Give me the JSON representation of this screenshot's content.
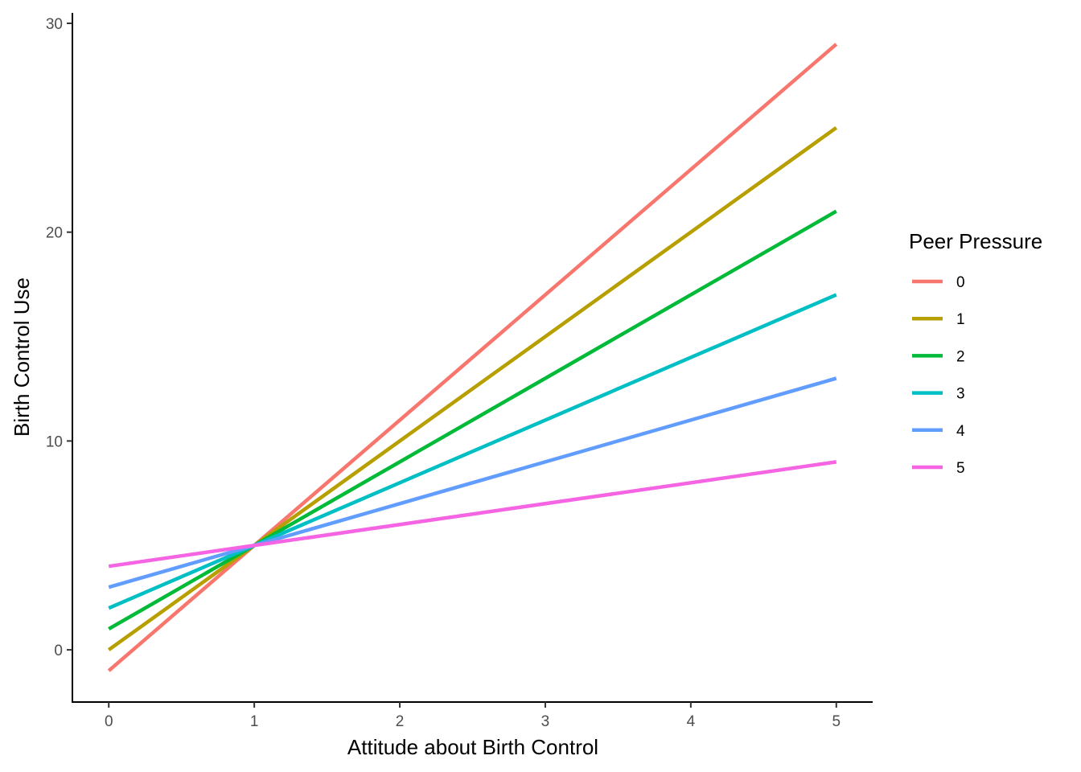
{
  "chart_data": {
    "type": "line",
    "title": "",
    "xlabel": "Attitude about Birth Control",
    "ylabel": "Birth Control Use",
    "xlim": [
      -0.25,
      5.25
    ],
    "ylim": [
      -2.5,
      30.5
    ],
    "xticks": [
      0,
      1,
      2,
      3,
      4,
      5
    ],
    "yticks": [
      0,
      10,
      20,
      30
    ],
    "x_tick_labels": [
      "0",
      "1",
      "2",
      "3",
      "4",
      "5"
    ],
    "y_tick_labels": [
      "0",
      "10",
      "20",
      "30"
    ],
    "grid": false,
    "legend": {
      "title": "Peer Pressure",
      "placement": "right"
    },
    "series": [
      {
        "name": "0",
        "color": "#F8766D",
        "x": [
          0,
          5
        ],
        "values": [
          -1,
          29
        ]
      },
      {
        "name": "1",
        "color": "#B79F00",
        "x": [
          0,
          5
        ],
        "values": [
          0,
          25
        ]
      },
      {
        "name": "2",
        "color": "#00BA38",
        "x": [
          0,
          5
        ],
        "values": [
          1,
          21
        ]
      },
      {
        "name": "3",
        "color": "#00BFC4",
        "x": [
          0,
          5
        ],
        "values": [
          2,
          17
        ]
      },
      {
        "name": "4",
        "color": "#619CFF",
        "x": [
          0,
          5
        ],
        "values": [
          3,
          13
        ]
      },
      {
        "name": "5",
        "color": "#F564E3",
        "x": [
          0,
          5
        ],
        "values": [
          4,
          9
        ]
      }
    ]
  }
}
